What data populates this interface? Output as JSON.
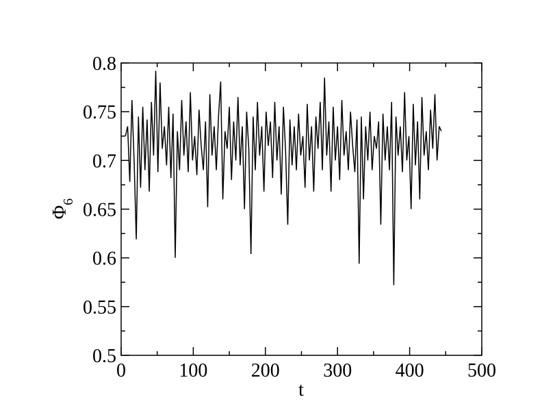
{
  "chart_data": {
    "type": "line",
    "xlabel": "t",
    "ylabel": {
      "symbol": "Φ",
      "subscript": "6"
    },
    "color": "#000000",
    "xlim": [
      0,
      500
    ],
    "xticks": [
      0,
      100,
      200,
      300,
      400,
      500
    ],
    "xminorticks": [
      50,
      150,
      250,
      350,
      450
    ],
    "ylim": [
      0.5,
      0.8
    ],
    "yticks": [
      0.5,
      0.55,
      0.6,
      0.65,
      0.7,
      0.75,
      0.8
    ],
    "yminorticks": [
      0.525,
      0.575,
      0.625,
      0.675,
      0.725,
      0.775
    ],
    "x": [
      6,
      9,
      12,
      15,
      18,
      21,
      24,
      27,
      30,
      33,
      36,
      39,
      42,
      45,
      48,
      51,
      54,
      57,
      60,
      63,
      66,
      69,
      72,
      75,
      78,
      81,
      84,
      87,
      90,
      93,
      96,
      99,
      102,
      105,
      108,
      111,
      114,
      117,
      120,
      123,
      126,
      129,
      132,
      135,
      138,
      141,
      144,
      147,
      150,
      153,
      156,
      159,
      162,
      165,
      168,
      171,
      174,
      177,
      180,
      183,
      186,
      189,
      192,
      195,
      198,
      201,
      204,
      207,
      210,
      213,
      216,
      219,
      222,
      225,
      228,
      231,
      234,
      237,
      240,
      243,
      246,
      249,
      252,
      255,
      258,
      261,
      264,
      267,
      270,
      273,
      276,
      279,
      282,
      285,
      288,
      291,
      294,
      297,
      300,
      303,
      306,
      309,
      312,
      315,
      318,
      321,
      324,
      327,
      330,
      333,
      336,
      339,
      342,
      345,
      348,
      351,
      354,
      357,
      360,
      363,
      366,
      369,
      372,
      375,
      378,
      381,
      384,
      387,
      390,
      393,
      396,
      399,
      402,
      405,
      408,
      411,
      414,
      417,
      420,
      423,
      426,
      429,
      432,
      435,
      438,
      441,
      444
    ],
    "values": [
      0.725,
      0.735,
      0.678,
      0.762,
      0.7,
      0.619,
      0.745,
      0.672,
      0.755,
      0.69,
      0.742,
      0.668,
      0.76,
      0.705,
      0.792,
      0.688,
      0.78,
      0.712,
      0.735,
      0.695,
      0.755,
      0.682,
      0.748,
      0.6,
      0.73,
      0.69,
      0.762,
      0.705,
      0.74,
      0.688,
      0.77,
      0.7,
      0.725,
      0.685,
      0.752,
      0.715,
      0.69,
      0.74,
      0.652,
      0.768,
      0.705,
      0.735,
      0.69,
      0.745,
      0.781,
      0.66,
      0.73,
      0.712,
      0.755,
      0.68,
      0.74,
      0.7,
      0.765,
      0.695,
      0.735,
      0.65,
      0.75,
      0.712,
      0.604,
      0.745,
      0.69,
      0.76,
      0.705,
      0.735,
      0.668,
      0.75,
      0.715,
      0.74,
      0.682,
      0.76,
      0.7,
      0.735,
      0.665,
      0.755,
      0.71,
      0.634,
      0.742,
      0.695,
      0.735,
      0.69,
      0.748,
      0.705,
      0.725,
      0.672,
      0.758,
      0.7,
      0.735,
      0.668,
      0.745,
      0.712,
      0.76,
      0.69,
      0.785,
      0.705,
      0.74,
      0.668,
      0.755,
      0.7,
      0.735,
      0.68,
      0.762,
      0.705,
      0.73,
      0.69,
      0.75,
      0.715,
      0.688,
      0.742,
      0.594,
      0.745,
      0.66,
      0.735,
      0.7,
      0.75,
      0.69,
      0.725,
      0.712,
      0.74,
      0.634,
      0.748,
      0.7,
      0.735,
      0.69,
      0.76,
      0.572,
      0.745,
      0.705,
      0.735,
      0.688,
      0.77,
      0.7,
      0.725,
      0.65,
      0.758,
      0.695,
      0.74,
      0.66,
      0.765,
      0.705,
      0.73,
      0.69,
      0.752,
      0.712,
      0.768,
      0.7,
      0.735,
      0.73
    ]
  }
}
